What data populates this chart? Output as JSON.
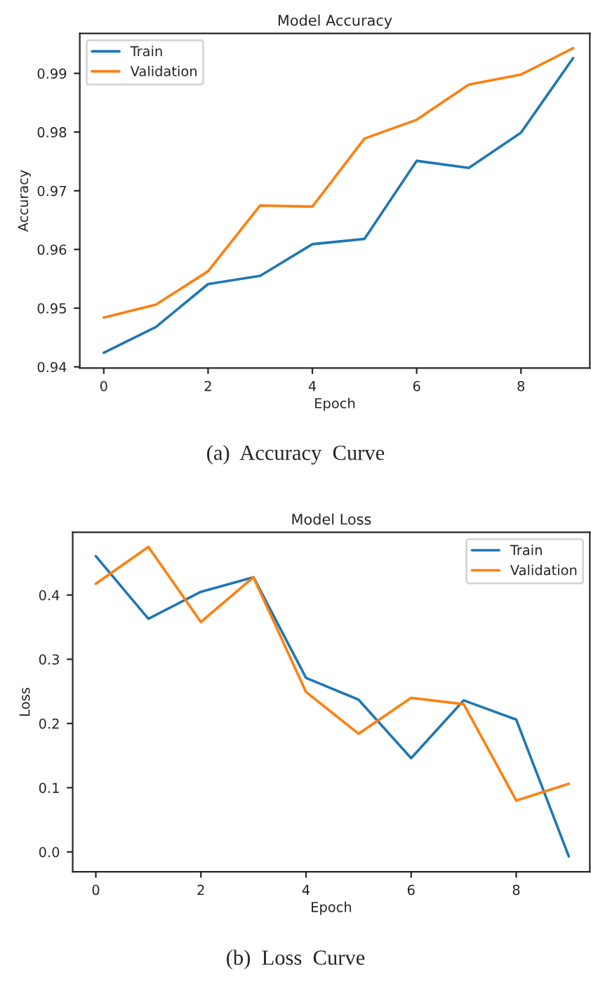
{
  "chart_data": [
    {
      "type": "line",
      "title": "Model Accuracy",
      "xlabel": "Epoch",
      "ylabel": "Accuracy",
      "x": [
        0,
        1,
        2,
        3,
        4,
        5,
        6,
        7,
        8,
        9
      ],
      "series": [
        {
          "name": "Train",
          "color": "#1f77b4",
          "values": [
            0.9424,
            0.9468,
            0.9541,
            0.9555,
            0.9609,
            0.9618,
            0.9751,
            0.9739,
            0.9799,
            0.9926
          ]
        },
        {
          "name": "Validation",
          "color": "#ff7f0e",
          "values": [
            0.9484,
            0.9506,
            0.9563,
            0.9675,
            0.9673,
            0.9789,
            0.9821,
            0.9881,
            0.9898,
            0.9943
          ]
        }
      ],
      "xlim": [
        -0.46,
        9.32
      ],
      "ylim": [
        0.9398,
        0.9968
      ],
      "xticks": [
        0,
        2,
        4,
        6,
        8
      ],
      "yticks": [
        0.94,
        0.95,
        0.96,
        0.97,
        0.98,
        0.99
      ],
      "legend": "top left",
      "grid": false,
      "annotations": [
        "(a)  Accuracy  Curve"
      ]
    },
    {
      "type": "line",
      "title": "Model Loss",
      "xlabel": "Epoch",
      "ylabel": "Loss",
      "x": [
        0,
        1,
        2,
        3,
        4,
        5,
        6,
        7,
        8,
        9
      ],
      "series": [
        {
          "name": "Train",
          "color": "#1f77b4",
          "values": [
            0.4605,
            0.363,
            0.405,
            0.4277,
            0.271,
            0.237,
            0.146,
            0.236,
            0.206,
            -0.007
          ]
        },
        {
          "name": "Validation",
          "color": "#ff7f0e",
          "values": [
            0.4175,
            0.475,
            0.358,
            0.4277,
            0.249,
            0.184,
            0.24,
            0.23,
            0.08,
            0.106
          ]
        }
      ],
      "xlim": [
        -0.44,
        9.4
      ],
      "ylim": [
        -0.031,
        0.4976
      ],
      "xticks": [
        0,
        2,
        4,
        6,
        8
      ],
      "yticks": [
        {
          "value": 0,
          "label": "0.0"
        },
        0.1,
        0.2,
        0.3,
        0.4
      ],
      "legend": "top right",
      "grid": false,
      "annotations": [
        "(b)  Loss  Curve"
      ]
    }
  ]
}
